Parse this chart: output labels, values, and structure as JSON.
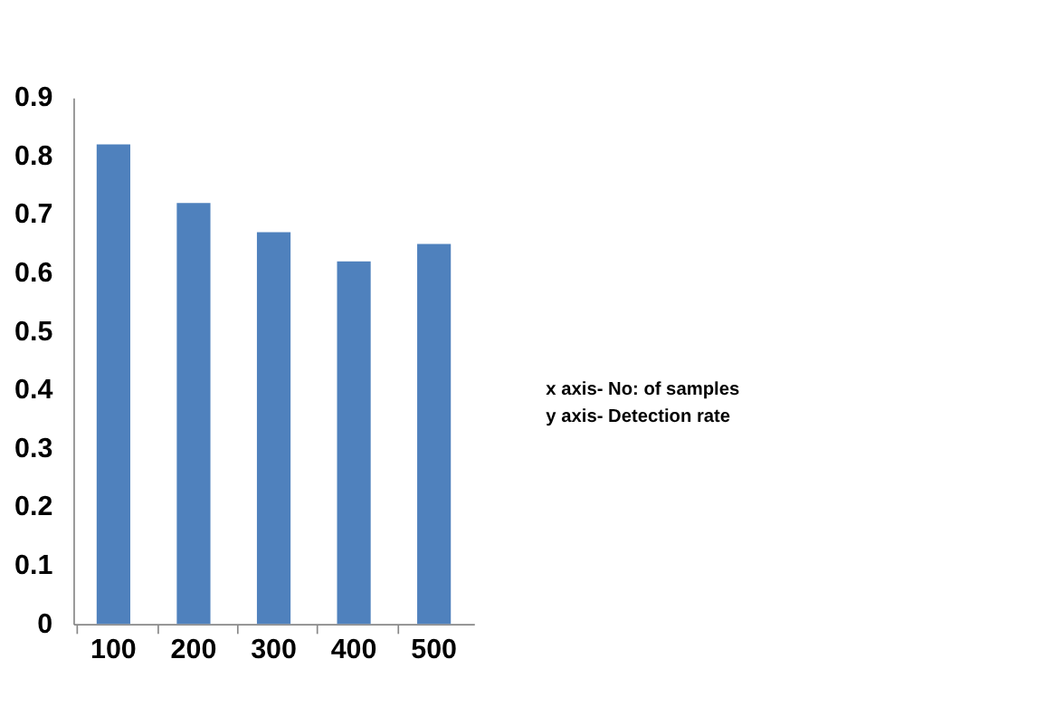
{
  "chart_data": {
    "type": "bar",
    "categories": [
      "100",
      "200",
      "300",
      "400",
      "500"
    ],
    "values": [
      0.82,
      0.72,
      0.67,
      0.62,
      0.65
    ],
    "color": "#4f81bd",
    "ylim": [
      0,
      0.9
    ],
    "yticks": [
      0,
      0.1,
      0.2,
      0.3,
      0.4,
      0.5,
      0.6,
      0.7,
      0.8,
      0.9
    ],
    "grid": false,
    "annotations": [
      "x axis- No: of samples",
      "y axis- Detection rate"
    ]
  }
}
